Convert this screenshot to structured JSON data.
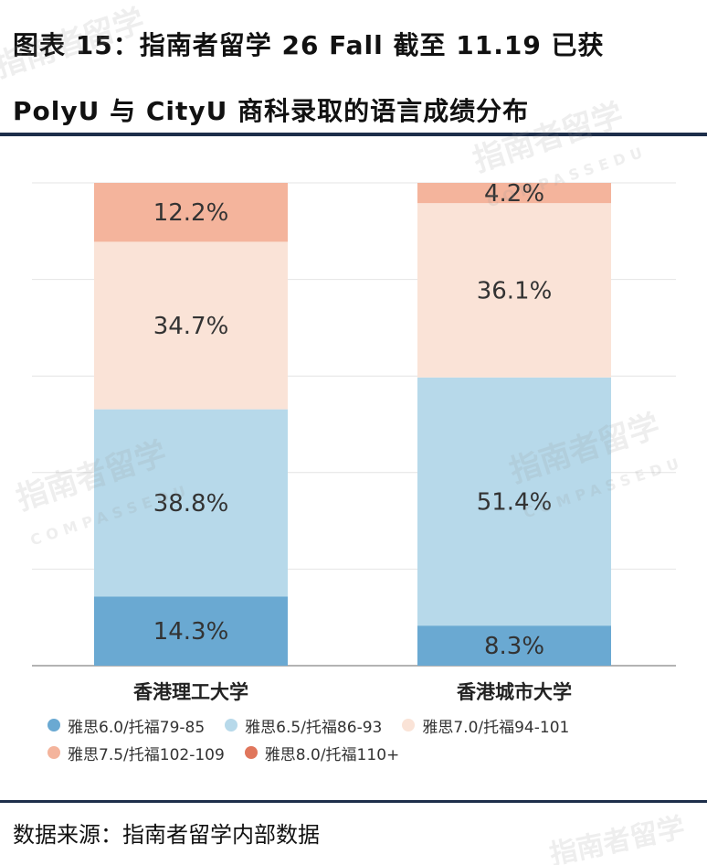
{
  "title": {
    "line1": "图表 15：指南者留学 26 Fall 截至 11.19 已获",
    "line2": "PolyU 与 CityU 商科录取的语言成绩分布"
  },
  "source": "数据来源：指南者留学内部数据",
  "watermark": {
    "text": "指南者留学",
    "subtext": "COMPASSEDU"
  },
  "chart_data": {
    "type": "bar",
    "stacked": true,
    "normalized_percent": true,
    "categories": [
      "香港理工大学",
      "香港城市大学"
    ],
    "series": [
      {
        "name": "雅思6.0/托福79-85",
        "values": [
          14.3,
          8.3
        ],
        "color": "#6aa9d2"
      },
      {
        "name": "雅思6.5/托福86-93",
        "values": [
          38.8,
          51.4
        ],
        "color": "#b7d9ea"
      },
      {
        "name": "雅思7.0/托福94-101",
        "values": [
          34.7,
          36.1
        ],
        "color": "#fae3d7"
      },
      {
        "name": "雅思7.5/托福102-109",
        "values": [
          12.2,
          4.2
        ],
        "color": "#f4b49c"
      },
      {
        "name": "雅思8.0/托福110+",
        "values": [
          0,
          0
        ],
        "color": "#e0765c"
      }
    ],
    "data_labels": [
      [
        "14.3%",
        "8.3%"
      ],
      [
        "38.8%",
        "51.4%"
      ],
      [
        "34.7%",
        "36.1%"
      ],
      [
        "12.2%",
        "4.2%"
      ],
      [
        "",
        ""
      ]
    ],
    "ylim": [
      0,
      100
    ],
    "grid": true,
    "legend_position": "bottom"
  }
}
